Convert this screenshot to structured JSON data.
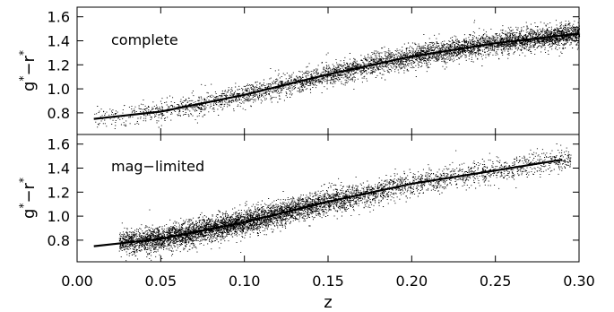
{
  "chart_data": [
    {
      "type": "scatter",
      "panel_label": "complete",
      "xlim": [
        0.0,
        0.3
      ],
      "ylim": [
        0.62,
        1.68
      ],
      "ylabel": {
        "base": "g",
        "sup": "*",
        "sep": "−",
        "base2": "r",
        "sup2": "*"
      },
      "yticks": [
        0.8,
        1.0,
        1.2,
        1.4,
        1.6
      ],
      "ytick_labels": [
        "0.8",
        "1.0",
        "1.2",
        "1.4",
        "1.6"
      ],
      "grid": false,
      "point_color": "#000000",
      "scatter_band": {
        "x_start": 0.01,
        "x_end": 0.3,
        "scatter_sigma": 0.045,
        "density": "increasing with z"
      },
      "series": [
        {
          "type": "line",
          "x": [
            0.01,
            0.05,
            0.1,
            0.15,
            0.2,
            0.25,
            0.3
          ],
          "y": [
            0.75,
            0.81,
            0.95,
            1.12,
            1.27,
            1.38,
            1.46
          ]
        }
      ]
    },
    {
      "type": "scatter",
      "panel_label": "mag−limited",
      "xlim": [
        0.0,
        0.3
      ],
      "ylim": [
        0.62,
        1.68
      ],
      "ylabel": {
        "base": "g",
        "sup": "*",
        "sep": "−",
        "base2": "r",
        "sup2": "*"
      },
      "yticks": [
        0.8,
        1.0,
        1.2,
        1.4,
        1.6
      ],
      "ytick_labels": [
        "0.8",
        "1.0",
        "1.2",
        "1.4",
        "1.6"
      ],
      "xticks": [
        0.0,
        0.05,
        0.1,
        0.15,
        0.2,
        0.25,
        0.3
      ],
      "xtick_labels": [
        "0.00",
        "0.05",
        "0.10",
        "0.15",
        "0.20",
        "0.25",
        "0.30"
      ],
      "xlabel": "z",
      "grid": false,
      "point_color": "#000000",
      "scatter_band": {
        "x_start": 0.01,
        "x_end": 0.295,
        "scatter_sigma": 0.05,
        "density": "peak near z=0.08"
      },
      "series": [
        {
          "type": "line",
          "x": [
            0.01,
            0.05,
            0.1,
            0.15,
            0.2,
            0.25,
            0.29
          ],
          "y": [
            0.75,
            0.81,
            0.95,
            1.12,
            1.27,
            1.38,
            1.47
          ]
        }
      ]
    }
  ]
}
